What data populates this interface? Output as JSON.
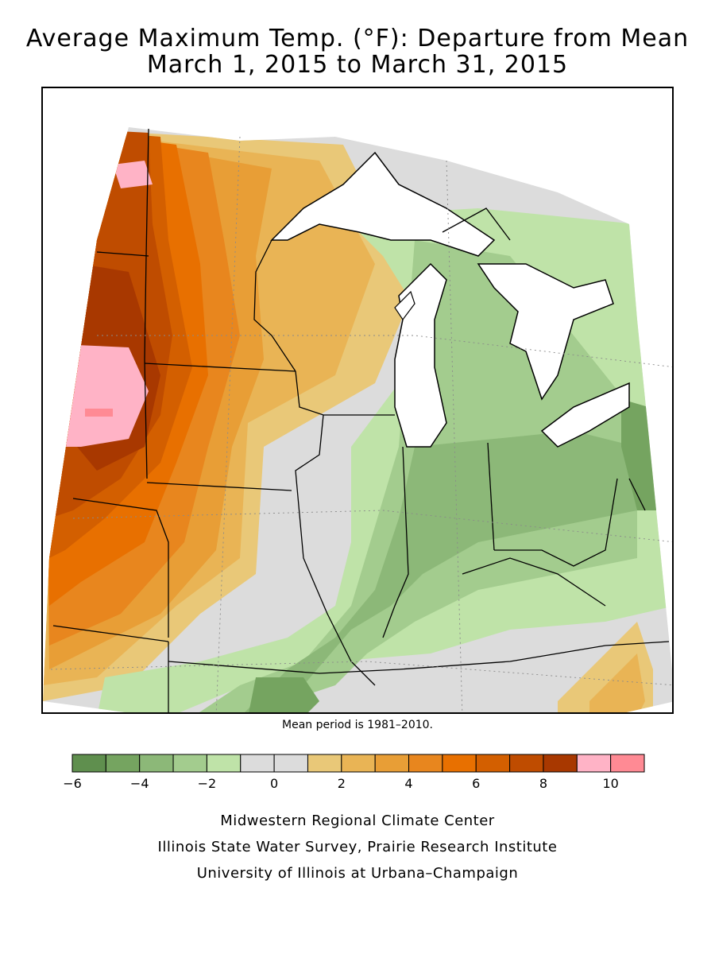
{
  "title_line1": "Average Maximum Temp. (°F): Departure from Mean",
  "title_line2": "March 1, 2015 to March 31, 2015",
  "mean_note": "Mean period is 1981–2010.",
  "legend": {
    "colors": [
      "#5f8f4e",
      "#75a460",
      "#8cb878",
      "#a3cc8e",
      "#bfe3a8",
      "#dcdcdc",
      "#dcdcdc",
      "#e9c878",
      "#e9b455",
      "#e89e36",
      "#e8861e",
      "#e87000",
      "#d35f00",
      "#bf4c00",
      "#a83800",
      "#ffb3c6",
      "#ff8a94"
    ],
    "ticks": [
      {
        "value": -6,
        "label": "−6"
      },
      {
        "value": -4,
        "label": "−4"
      },
      {
        "value": -2,
        "label": "−2"
      },
      {
        "value": 0,
        "label": "0"
      },
      {
        "value": 2,
        "label": "2"
      },
      {
        "value": 4,
        "label": "4"
      },
      {
        "value": 6,
        "label": "6"
      },
      {
        "value": 8,
        "label": "8"
      },
      {
        "value": 10,
        "label": "10"
      }
    ],
    "min": -6,
    "max": 11
  },
  "credits": {
    "line1": "Midwestern Regional Climate Center",
    "line2": "Illinois State Water Survey, Prairie Research Institute",
    "line3": "University of Illinois at Urbana–Champaign"
  }
}
